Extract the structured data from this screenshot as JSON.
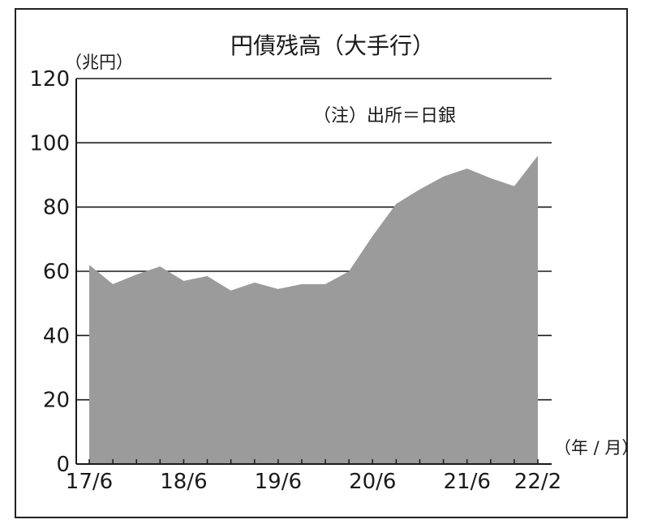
{
  "chart_data": {
    "type": "area",
    "title": "円債残高（大手行）",
    "ylabel": "（兆円）",
    "xlabel": "（年 / 月）",
    "annotation": "（注）出所＝日銀",
    "ylim": [
      0,
      120
    ],
    "yticks": [
      0,
      20,
      40,
      60,
      80,
      100,
      120
    ],
    "xtick_labels": [
      "17/6",
      "18/6",
      "19/6",
      "20/6",
      "21/6",
      "22/2"
    ],
    "grid": true,
    "fill_color": "#9b9b9b",
    "x": [
      "17/6",
      "17/9",
      "17/12",
      "18/3",
      "18/6",
      "18/9",
      "18/12",
      "19/3",
      "19/6",
      "19/9",
      "19/12",
      "20/3",
      "20/6",
      "20/9",
      "20/12",
      "21/3",
      "21/6",
      "21/9",
      "21/12",
      "22/2"
    ],
    "values": [
      62,
      56,
      59,
      61.5,
      57,
      58.5,
      54,
      56.5,
      54.5,
      56,
      56,
      60,
      71,
      81,
      85.5,
      89.5,
      92,
      89,
      86.5,
      96
    ]
  }
}
